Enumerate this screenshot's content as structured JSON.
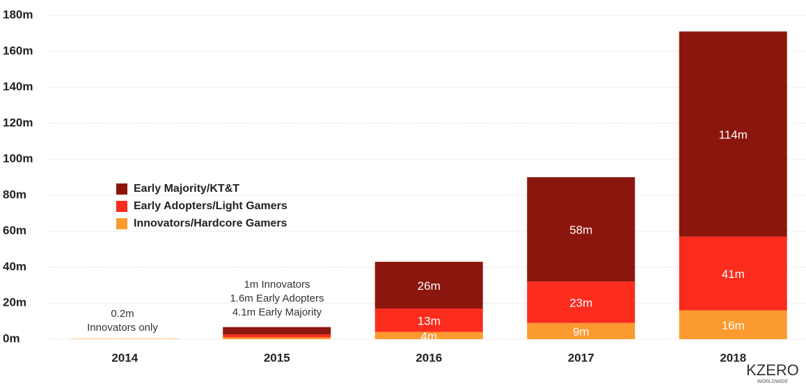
{
  "chart_data": {
    "type": "bar",
    "stacked": true,
    "categories": [
      "2014",
      "2015",
      "2016",
      "2017",
      "2018"
    ],
    "series": [
      {
        "name": "Innovators/Hardcore Gamers",
        "color": "#fb9a2f",
        "values": [
          0.2,
          1,
          4,
          9,
          16
        ],
        "value_labels": [
          null,
          null,
          "4m",
          "9m",
          "16m"
        ]
      },
      {
        "name": "Early Adopters/Light Gamers",
        "color": "#fb2c1e",
        "values": [
          0,
          1.6,
          13,
          23,
          41
        ],
        "value_labels": [
          null,
          null,
          "13m",
          "23m",
          "41m"
        ]
      },
      {
        "name": "Early Majority/KT&T",
        "color": "#8b160d",
        "values": [
          0,
          4.1,
          26,
          58,
          114
        ],
        "value_labels": [
          null,
          null,
          "26m",
          "58m",
          "114m"
        ]
      }
    ],
    "ylim": [
      0,
      180
    ],
    "yticks": [
      {
        "value": 0,
        "label": "0m"
      },
      {
        "value": 20,
        "label": "20m"
      },
      {
        "value": 40,
        "label": "40m"
      },
      {
        "value": 60,
        "label": "60m"
      },
      {
        "value": 80,
        "label": "80m"
      },
      {
        "value": 100,
        "label": "100m"
      },
      {
        "value": 120,
        "label": "120m"
      },
      {
        "value": 140,
        "label": "140m"
      },
      {
        "value": 160,
        "label": "160m"
      },
      {
        "value": 180,
        "label": "180m"
      }
    ],
    "grid": true,
    "annotations": [
      [
        "0.2m",
        "Innovators only"
      ],
      [
        "1m Innovators",
        "1.6m Early Adopters",
        "4.1m Early Majority"
      ]
    ],
    "logo": {
      "name": "KZERO",
      "tagline": "WORLDWIDE"
    }
  }
}
